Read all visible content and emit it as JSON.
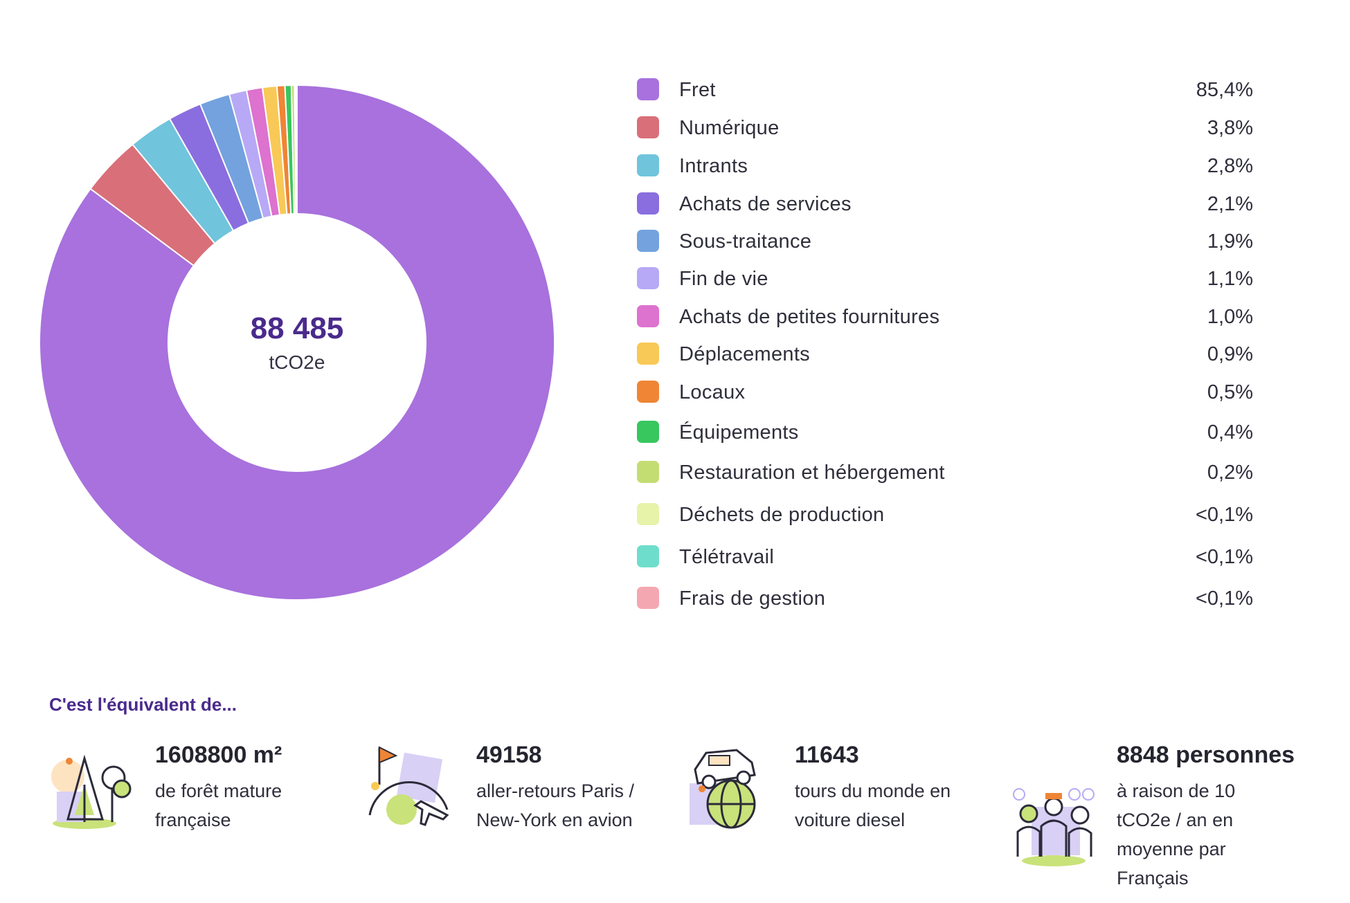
{
  "chart_data": {
    "type": "pie",
    "center_total": "88 485",
    "center_unit": "tCO2e",
    "slices": [
      {
        "label": "Fret",
        "value_label": "85,4%",
        "value": 85.4,
        "color": "#a871dd"
      },
      {
        "label": "Numérique",
        "value_label": "3,8%",
        "value": 3.8,
        "color": "#d96f79"
      },
      {
        "label": "Intrants",
        "value_label": "2,8%",
        "value": 2.8,
        "color": "#70c4dc"
      },
      {
        "label": "Achats de services",
        "value_label": "2,1%",
        "value": 2.1,
        "color": "#8a6edf"
      },
      {
        "label": "Sous-traitance",
        "value_label": "1,9%",
        "value": 1.9,
        "color": "#73a2de"
      },
      {
        "label": "Fin de vie",
        "value_label": "1,1%",
        "value": 1.1,
        "color": "#b7a9f5"
      },
      {
        "label": "Achats de petites fournitures",
        "value_label": "1,0%",
        "value": 1.0,
        "color": "#dd72cf"
      },
      {
        "label": "Déplacements",
        "value_label": "0,9%",
        "value": 0.9,
        "color": "#f8c956"
      },
      {
        "label": "Locaux",
        "value_label": "0,5%",
        "value": 0.5,
        "color": "#ef8535"
      },
      {
        "label": "Équipements",
        "value_label": "0,4%",
        "value": 0.4,
        "color": "#38c65f"
      },
      {
        "label": "Restauration et hébergement",
        "value_label": "0,2%",
        "value": 0.2,
        "color": "#c4dd73"
      },
      {
        "label": "Déchets de production",
        "value_label": "<0,1%",
        "value": 0.05,
        "color": "#e6f3a9"
      },
      {
        "label": "Télétravail",
        "value_label": "<0,1%",
        "value": 0.05,
        "color": "#6fddcb"
      },
      {
        "label": "Frais de gestion",
        "value_label": "<0,1%",
        "value": 0.05,
        "color": "#f4a7b1"
      }
    ]
  },
  "equivalents": {
    "title": "C'est l'équivalent de...",
    "items": [
      {
        "value": "1608800 m²",
        "line1": "de forêt mature",
        "line2": "française",
        "icon": "forest-icon"
      },
      {
        "value": "49158",
        "line1": "aller-retours Paris /",
        "line2": "New-York en avion",
        "icon": "airplane-icon"
      },
      {
        "value": "11643",
        "line1": "tours du monde en",
        "line2": "voiture diesel",
        "icon": "car-globe-icon"
      },
      {
        "value": "8848 personnes",
        "line1": "à raison de 10",
        "line2": "tCO2e / an en",
        "line3": "moyenne par",
        "line4": "Français",
        "icon": "people-icon"
      }
    ]
  }
}
